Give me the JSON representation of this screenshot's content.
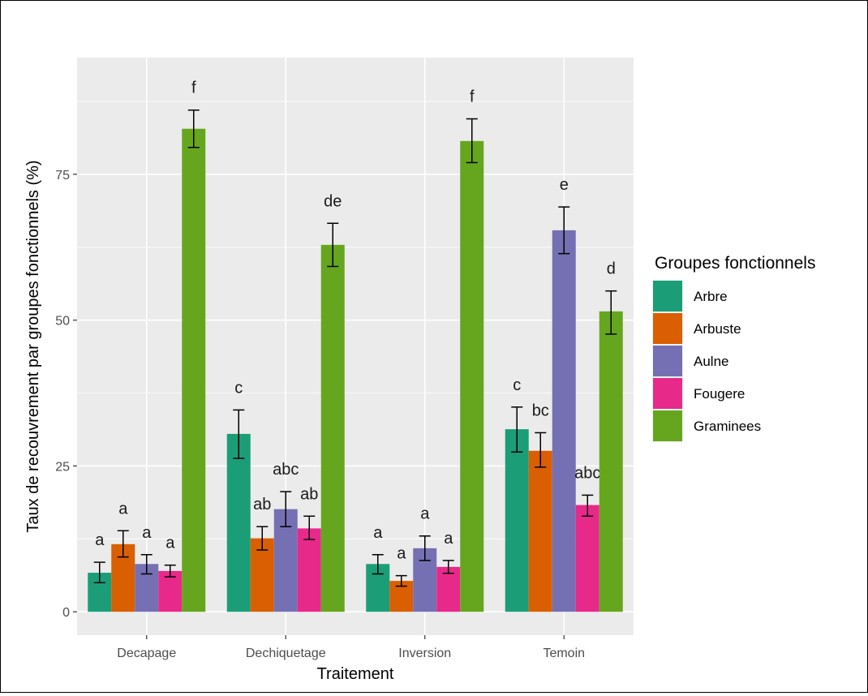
{
  "chart_data": {
    "type": "bar",
    "title": "",
    "xlabel": "Traitement",
    "ylabel": "Taux de recouvrement par groupes fonctionnels (%)",
    "ylim": [
      -4,
      95
    ],
    "yticks": [
      0,
      25,
      50,
      75
    ],
    "grid": true,
    "legend_position": "right",
    "legend_title": "Groupes fonctionnels",
    "categories": [
      "Decapage",
      "Dechiquetage",
      "Inversion",
      "Temoin"
    ],
    "series": [
      {
        "name": "Arbre",
        "color": "#1b9e77",
        "values": [
          6.7,
          30.5,
          8.2,
          31.3
        ],
        "err_low": [
          5.0,
          26.3,
          6.5,
          27.4
        ],
        "err_high": [
          8.5,
          34.6,
          9.8,
          35.1
        ],
        "letters": [
          "a",
          "c",
          "a",
          "c"
        ]
      },
      {
        "name": "Arbuste",
        "color": "#d95f02",
        "values": [
          11.6,
          12.6,
          5.3,
          27.6
        ],
        "err_low": [
          9.4,
          10.6,
          4.4,
          24.8
        ],
        "err_high": [
          13.9,
          14.6,
          6.2,
          30.7
        ],
        "letters": [
          "a",
          "ab",
          "a",
          "bc"
        ]
      },
      {
        "name": "Aulne",
        "color": "#7570b3",
        "values": [
          8.2,
          17.6,
          10.9,
          65.4
        ],
        "err_low": [
          6.5,
          14.6,
          8.8,
          61.4
        ],
        "err_high": [
          9.8,
          20.6,
          13.0,
          69.4
        ],
        "letters": [
          "a",
          "abc",
          "a",
          "e"
        ]
      },
      {
        "name": "Fougere",
        "color": "#e7298a",
        "values": [
          7.0,
          14.3,
          7.7,
          18.3
        ],
        "err_low": [
          6.0,
          12.4,
          6.6,
          16.4
        ],
        "err_high": [
          8.0,
          16.4,
          8.8,
          20.0
        ],
        "letters": [
          "a",
          "ab",
          "a",
          "abc"
        ]
      },
      {
        "name": "Graminees",
        "color": "#66a61e",
        "values": [
          82.8,
          62.9,
          80.7,
          51.5
        ],
        "err_low": [
          79.6,
          59.2,
          77.0,
          47.6
        ],
        "err_high": [
          86.0,
          66.6,
          84.5,
          55.0
        ],
        "letters": [
          "f",
          "de",
          "f",
          "d"
        ]
      }
    ]
  }
}
